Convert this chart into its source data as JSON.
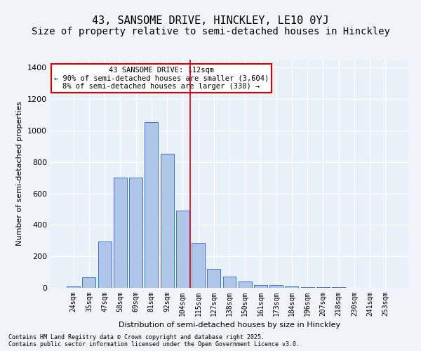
{
  "title_line1": "43, SANSOME DRIVE, HINCKLEY, LE10 0YJ",
  "title_line2": "Size of property relative to semi-detached houses in Hinckley",
  "xlabel": "Distribution of semi-detached houses by size in Hinckley",
  "ylabel": "Number of semi-detached properties",
  "categories": [
    "24sqm",
    "35sqm",
    "47sqm",
    "58sqm",
    "69sqm",
    "81sqm",
    "92sqm",
    "104sqm",
    "115sqm",
    "127sqm",
    "138sqm",
    "150sqm",
    "161sqm",
    "173sqm",
    "184sqm",
    "196sqm",
    "207sqm",
    "218sqm",
    "230sqm",
    "241sqm",
    "253sqm"
  ],
  "values": [
    8,
    65,
    295,
    700,
    700,
    1055,
    850,
    490,
    285,
    120,
    70,
    40,
    18,
    18,
    10,
    5,
    5,
    3,
    2,
    1,
    1
  ],
  "bar_color": "#aec6e8",
  "bar_edge_color": "#4472c4",
  "vline_x": 8,
  "vline_color": "#cc0000",
  "vline_label": "112sqm",
  "annotation_line1": "43 SANSOME DRIVE: 112sqm",
  "annotation_line2": "← 90% of semi-detached houses are smaller (3,604)",
  "annotation_line3": "8% of semi-detached houses are larger (330) →",
  "annotation_box_color": "#ffcccc",
  "annotation_box_edge": "#cc0000",
  "ylim": [
    0,
    1450
  ],
  "yticks": [
    0,
    200,
    400,
    600,
    800,
    1000,
    1200,
    1400
  ],
  "background_color": "#e8f0f8",
  "footer_line1": "Contains HM Land Registry data © Crown copyright and database right 2025.",
  "footer_line2": "Contains public sector information licensed under the Open Government Licence v3.0.",
  "grid_color": "#ffffff",
  "title_fontsize": 11,
  "subtitle_fontsize": 10
}
